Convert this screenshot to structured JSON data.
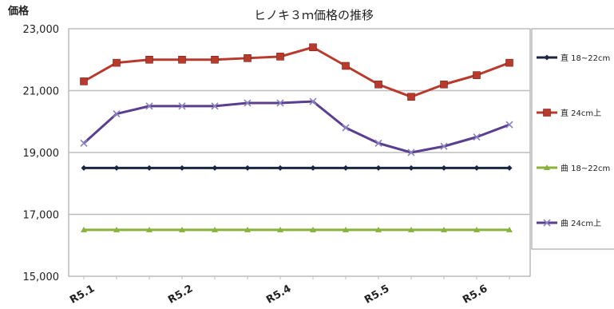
{
  "chart_data": {
    "type": "line",
    "title": "ヒノキ３ｍ価格の推移",
    "ylabel": "価格",
    "xlabel": "",
    "ylim": [
      15000,
      23000
    ],
    "yticks": [
      "15,000",
      "17,000",
      "19,000",
      "21,000",
      "23,000"
    ],
    "ytick_values": [
      15000,
      17000,
      19000,
      21000,
      23000
    ],
    "x_tick_labels": [
      "R5.1",
      "R5.2",
      "R5.4",
      "R5.5",
      "R5.6"
    ],
    "x_tick_positions": [
      0,
      3,
      6,
      9,
      12
    ],
    "point_count": 14,
    "grid": true,
    "legend_position": "right",
    "series": [
      {
        "name": "直 18~22cm",
        "color": "#1a2540",
        "marker": "diamond",
        "values": [
          18500,
          18500,
          18500,
          18500,
          18500,
          18500,
          18500,
          18500,
          18500,
          18500,
          18500,
          18500,
          18500,
          18500
        ]
      },
      {
        "name": "直 24cm上",
        "color": "#b83a2c",
        "marker": "square",
        "values": [
          21300,
          21900,
          22000,
          22000,
          22000,
          22050,
          22100,
          22400,
          21800,
          21200,
          20800,
          21200,
          21500,
          21900
        ]
      },
      {
        "name": "曲 18~22cm",
        "color": "#8ab23a",
        "marker": "triangle",
        "values": [
          16500,
          16500,
          16500,
          16500,
          16500,
          16500,
          16500,
          16500,
          16500,
          16500,
          16500,
          16500,
          16500,
          16500
        ]
      },
      {
        "name": "曲 24cm上",
        "color": "#5a3e90",
        "marker": "x",
        "values": [
          19300,
          20250,
          20500,
          20500,
          20500,
          20600,
          20600,
          20650,
          19800,
          19300,
          19000,
          19200,
          19500,
          19900
        ]
      }
    ]
  }
}
